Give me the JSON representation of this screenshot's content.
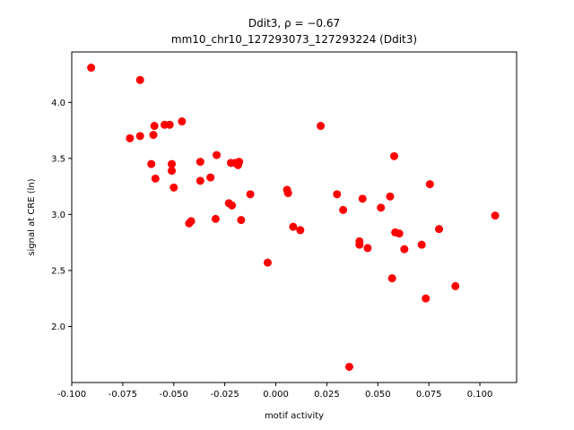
{
  "chart_data": {
    "type": "scatter",
    "title_line1": "Ddit3, ρ = −0.67",
    "title_line2": "mm10_chr10_127293073_127293224 (Ddit3)",
    "xlabel": "motif activity",
    "ylabel": "signal at CRE (ln)",
    "xlim": [
      -0.1,
      0.118
    ],
    "ylim": [
      1.5,
      4.45
    ],
    "xticks": [
      "-0.100",
      "-0.075",
      "-0.050",
      "-0.025",
      "0.000",
      "0.025",
      "0.050",
      "0.075",
      "0.100"
    ],
    "xtick_values": [
      -0.1,
      -0.075,
      -0.05,
      -0.025,
      0.0,
      0.025,
      0.05,
      0.075,
      0.1
    ],
    "yticks": [
      "2.0",
      "2.5",
      "3.0",
      "3.5",
      "4.0"
    ],
    "ytick_values": [
      2.0,
      2.5,
      3.0,
      3.5,
      4.0
    ],
    "grid": false,
    "marker_color": "#ff0000",
    "points": [
      {
        "x": -0.0905,
        "y": 4.31
      },
      {
        "x": -0.0665,
        "y": 4.2
      },
      {
        "x": -0.0715,
        "y": 3.68
      },
      {
        "x": -0.0665,
        "y": 3.7
      },
      {
        "x": -0.06,
        "y": 3.71
      },
      {
        "x": -0.0595,
        "y": 3.79
      },
      {
        "x": -0.0545,
        "y": 3.8
      },
      {
        "x": -0.052,
        "y": 3.8
      },
      {
        "x": -0.046,
        "y": 3.83
      },
      {
        "x": -0.061,
        "y": 3.45
      },
      {
        "x": -0.059,
        "y": 3.32
      },
      {
        "x": -0.051,
        "y": 3.45
      },
      {
        "x": -0.051,
        "y": 3.39
      },
      {
        "x": -0.05,
        "y": 3.24
      },
      {
        "x": -0.037,
        "y": 3.47
      },
      {
        "x": -0.037,
        "y": 3.3
      },
      {
        "x": -0.032,
        "y": 3.33
      },
      {
        "x": -0.029,
        "y": 3.53
      },
      {
        "x": -0.022,
        "y": 3.46
      },
      {
        "x": -0.02,
        "y": 3.46
      },
      {
        "x": -0.0185,
        "y": 3.44
      },
      {
        "x": -0.018,
        "y": 3.47
      },
      {
        "x": -0.0425,
        "y": 2.92
      },
      {
        "x": -0.0415,
        "y": 2.94
      },
      {
        "x": -0.0295,
        "y": 2.96
      },
      {
        "x": -0.023,
        "y": 3.1
      },
      {
        "x": -0.0215,
        "y": 3.08
      },
      {
        "x": -0.017,
        "y": 2.95
      },
      {
        "x": -0.0125,
        "y": 3.18
      },
      {
        "x": -0.004,
        "y": 2.57
      },
      {
        "x": 0.0055,
        "y": 3.22
      },
      {
        "x": 0.006,
        "y": 3.19
      },
      {
        "x": 0.0085,
        "y": 2.89
      },
      {
        "x": 0.012,
        "y": 2.86
      },
      {
        "x": 0.022,
        "y": 3.79
      },
      {
        "x": 0.03,
        "y": 3.18
      },
      {
        "x": 0.033,
        "y": 3.04
      },
      {
        "x": 0.036,
        "y": 1.64
      },
      {
        "x": 0.041,
        "y": 2.73
      },
      {
        "x": 0.041,
        "y": 2.76
      },
      {
        "x": 0.0425,
        "y": 3.14
      },
      {
        "x": 0.045,
        "y": 2.7
      },
      {
        "x": 0.0515,
        "y": 3.06
      },
      {
        "x": 0.056,
        "y": 3.16
      },
      {
        "x": 0.057,
        "y": 2.43
      },
      {
        "x": 0.058,
        "y": 3.52
      },
      {
        "x": 0.0585,
        "y": 2.84
      },
      {
        "x": 0.0605,
        "y": 2.83
      },
      {
        "x": 0.063,
        "y": 2.69
      },
      {
        "x": 0.0715,
        "y": 2.73
      },
      {
        "x": 0.0735,
        "y": 2.25
      },
      {
        "x": 0.0755,
        "y": 3.27
      },
      {
        "x": 0.08,
        "y": 2.87
      },
      {
        "x": 0.088,
        "y": 2.36
      },
      {
        "x": 0.1075,
        "y": 2.99
      }
    ]
  }
}
